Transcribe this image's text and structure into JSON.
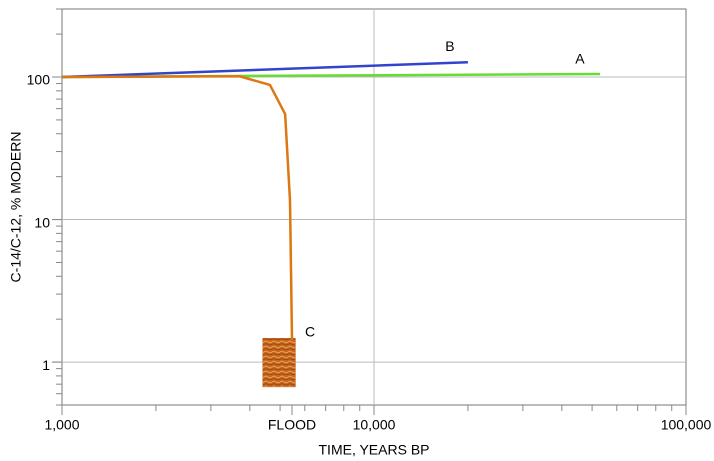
{
  "chart_data": {
    "type": "line",
    "xlabel": "TIME, YEARS BP",
    "ylabel": "C-14/C-12, % MODERN",
    "xscale": "log",
    "yscale": "log",
    "xlim": [
      1000,
      100000
    ],
    "ylim": [
      0.5,
      300
    ],
    "xticks": [
      {
        "value": 1000,
        "label": "1,000"
      },
      {
        "value": 5460,
        "label": "FLOOD"
      },
      {
        "value": 10000,
        "label": "10,000"
      },
      {
        "value": 100000,
        "label": "100,000"
      }
    ],
    "yticks": [
      1,
      10,
      100
    ],
    "xgrid": [
      10000
    ],
    "grid": true,
    "series": [
      {
        "name": "A",
        "color": "#66dd33",
        "x": [
          1000,
          53000
        ],
        "y": [
          100,
          105
        ]
      },
      {
        "name": "B",
        "color": "#3344cc",
        "x": [
          1000,
          20000
        ],
        "y": [
          100,
          127
        ]
      },
      {
        "name": "C",
        "color": "#dd7711",
        "x": [
          1000,
          3000,
          3720,
          4640,
          5190,
          5380,
          5460
        ],
        "y": [
          100,
          101,
          101,
          88,
          55,
          13.6,
          1.43
        ]
      }
    ],
    "flood_box": {
      "x": [
        4400,
        5600
      ],
      "y": [
        0.67,
        1.47
      ],
      "color": "#c8651e"
    }
  }
}
